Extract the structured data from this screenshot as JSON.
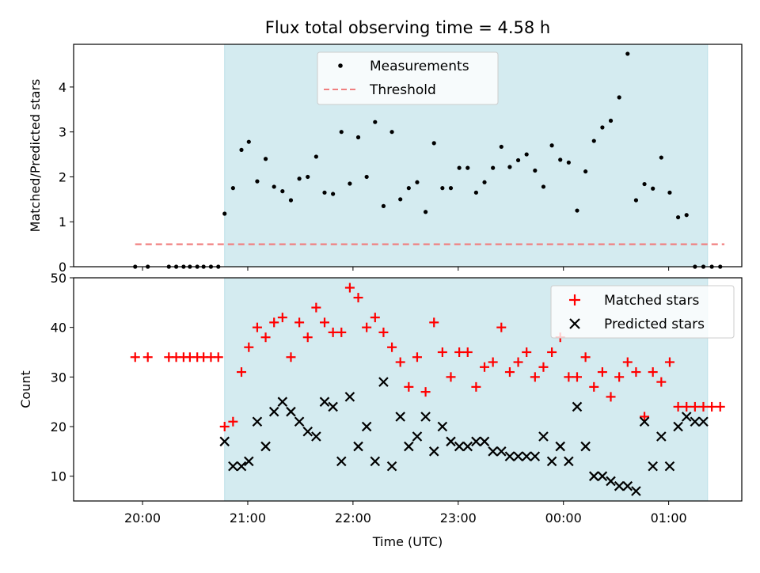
{
  "chart_data": {
    "type": "scatter",
    "title": "Flux total observing time = 4.58 h",
    "xlabel": "Time (UTC)",
    "x_ticks": [
      "20:00",
      "21:00",
      "22:00",
      "23:00",
      "00:00",
      "01:00"
    ],
    "shaded_range_hours": [
      20.78,
      25.37
    ],
    "colors": {
      "shade": "#d4ebf0",
      "threshold": "#f08080",
      "matched": "#ff0000",
      "predicted": "#000000",
      "measurements": "#000000"
    },
    "top": {
      "ylabel": "Matched/Predicted stars",
      "ylim": [
        0,
        4.95
      ],
      "y_ticks": [
        0,
        1,
        2,
        3,
        4
      ],
      "threshold": 0.5,
      "threshold_x_range": [
        19.93,
        25.53
      ],
      "legend": {
        "placement": "upper-center",
        "items": [
          "Measurements",
          "Threshold"
        ]
      },
      "series": [
        {
          "name": "Measurements",
          "x": [
            19.93,
            20.05,
            20.25,
            20.32,
            20.39,
            20.45,
            20.52,
            20.58,
            20.65,
            20.72,
            20.78,
            20.86,
            20.94,
            21.01,
            21.09,
            21.17,
            21.25,
            21.33,
            21.41,
            21.49,
            21.57,
            21.65,
            21.73,
            21.81,
            21.89,
            21.97,
            22.05,
            22.13,
            22.21,
            22.29,
            22.37,
            22.45,
            22.53,
            22.61,
            22.69,
            22.77,
            22.85,
            22.93,
            23.01,
            23.09,
            23.17,
            23.25,
            23.33,
            23.41,
            23.49,
            23.57,
            23.65,
            23.73,
            23.81,
            23.89,
            23.97,
            24.05,
            24.13,
            24.21,
            24.29,
            24.37,
            24.45,
            24.53,
            24.61,
            24.69,
            24.77,
            24.85,
            24.93,
            25.01,
            25.09,
            25.17,
            25.25,
            25.33,
            25.41,
            25.49
          ],
          "y": [
            0,
            0,
            0,
            0,
            0,
            0,
            0,
            0,
            0,
            0,
            1.18,
            1.75,
            2.6,
            2.78,
            1.9,
            2.4,
            1.78,
            1.68,
            1.48,
            1.96,
            2.0,
            2.45,
            1.65,
            1.62,
            3.0,
            1.85,
            2.88,
            2.0,
            3.22,
            1.35,
            3.0,
            1.5,
            1.75,
            1.88,
            1.22,
            2.75,
            1.75,
            1.75,
            2.2,
            2.2,
            1.65,
            1.88,
            2.2,
            2.67,
            2.22,
            2.37,
            2.5,
            2.14,
            1.78,
            2.7,
            2.38,
            2.32,
            1.25,
            2.12,
            2.8,
            3.1,
            3.25,
            3.77,
            4.74,
            1.48,
            1.84,
            1.74,
            2.43,
            1.65,
            1.1,
            1.15,
            0,
            0,
            0,
            0
          ]
        }
      ]
    },
    "bottom": {
      "ylabel": "Count",
      "ylim": [
        5,
        50
      ],
      "y_ticks": [
        10,
        20,
        30,
        40,
        50
      ],
      "legend": {
        "placement": "upper-right",
        "items": [
          "Matched stars",
          "Predicted stars"
        ]
      },
      "series": [
        {
          "name": "Matched stars",
          "x": [
            19.93,
            20.05,
            20.25,
            20.32,
            20.39,
            20.45,
            20.52,
            20.58,
            20.65,
            20.72,
            20.78,
            20.86,
            20.94,
            21.01,
            21.09,
            21.17,
            21.25,
            21.33,
            21.41,
            21.49,
            21.57,
            21.65,
            21.73,
            21.81,
            21.89,
            21.97,
            22.05,
            22.13,
            22.21,
            22.29,
            22.37,
            22.45,
            22.53,
            22.61,
            22.69,
            22.77,
            22.85,
            22.93,
            23.01,
            23.09,
            23.17,
            23.25,
            23.33,
            23.41,
            23.49,
            23.57,
            23.65,
            23.73,
            23.81,
            23.89,
            23.97,
            24.05,
            24.13,
            24.21,
            24.29,
            24.37,
            24.45,
            24.53,
            24.61,
            24.69,
            24.77,
            24.85,
            24.93,
            25.01,
            25.09,
            25.17,
            25.25,
            25.33,
            25.41,
            25.49
          ],
          "y": [
            34,
            34,
            34,
            34,
            34,
            34,
            34,
            34,
            34,
            34,
            20,
            21,
            31,
            36,
            40,
            38,
            41,
            42,
            34,
            41,
            38,
            44,
            41,
            39,
            39,
            48,
            46,
            40,
            42,
            39,
            36,
            33,
            28,
            34,
            27,
            41,
            35,
            30,
            35,
            35,
            28,
            32,
            33,
            40,
            31,
            33,
            35,
            30,
            32,
            35,
            38,
            30,
            30,
            34,
            28,
            31,
            26,
            30,
            33,
            31,
            22,
            31,
            29,
            33,
            24,
            24,
            24,
            24,
            24,
            24
          ]
        },
        {
          "name": "Predicted stars",
          "x": [
            20.78,
            20.86,
            20.94,
            21.01,
            21.09,
            21.17,
            21.25,
            21.33,
            21.41,
            21.49,
            21.57,
            21.65,
            21.73,
            21.81,
            21.89,
            21.97,
            22.05,
            22.13,
            22.21,
            22.29,
            22.37,
            22.45,
            22.53,
            22.61,
            22.69,
            22.77,
            22.85,
            22.93,
            23.01,
            23.09,
            23.17,
            23.25,
            23.33,
            23.41,
            23.49,
            23.57,
            23.65,
            23.73,
            23.81,
            23.89,
            23.97,
            24.05,
            24.13,
            24.21,
            24.29,
            24.37,
            24.45,
            24.53,
            24.61,
            24.69,
            24.77,
            24.85,
            24.93,
            25.01,
            25.09,
            25.17,
            25.25,
            25.33
          ],
          "y": [
            17,
            12,
            12,
            13,
            21,
            16,
            23,
            25,
            23,
            21,
            19,
            18,
            25,
            24,
            13,
            26,
            16,
            20,
            13,
            29,
            12,
            22,
            16,
            18,
            22,
            15,
            20,
            17,
            16,
            16,
            17,
            17,
            15,
            15,
            14,
            14,
            14,
            14,
            18,
            13,
            16,
            13,
            24,
            16,
            10,
            10,
            9,
            8,
            8,
            7,
            21,
            12,
            18,
            12,
            20,
            22,
            21,
            21
          ]
        }
      ]
    }
  }
}
